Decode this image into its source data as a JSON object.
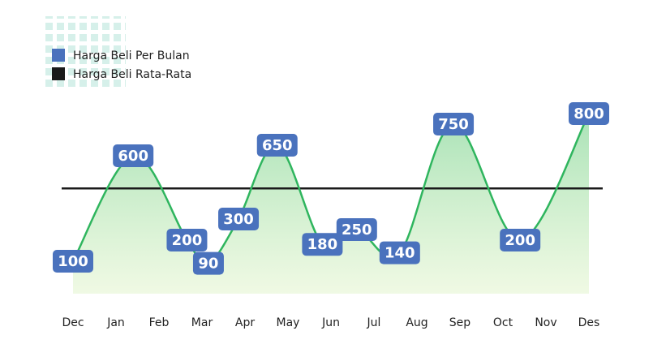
{
  "chart_data": {
    "type": "line",
    "series": [
      {
        "name": "Harga Beli Per Bulan",
        "color": "#4a72bd",
        "line_color": "#2fb55e",
        "x": [
          0,
          1.4,
          2.65,
          3.15,
          3.85,
          4.75,
          5.8,
          6.6,
          7.6,
          8.85,
          10.4,
          12
        ],
        "values": [
          100,
          600,
          200,
          90,
          300,
          650,
          180,
          250,
          140,
          750,
          200,
          800
        ]
      },
      {
        "name": "Harga Beli Rata-Rata",
        "color": "#1a1a1a",
        "values": [
          445
        ]
      }
    ],
    "xlim": [
      0,
      12
    ],
    "xticks": [
      {
        "value": 0,
        "label": "Dec"
      },
      {
        "value": 1,
        "label": "Jan"
      },
      {
        "value": 2,
        "label": "Feb"
      },
      {
        "value": 3,
        "label": "Mar"
      },
      {
        "value": 4,
        "label": "Apr"
      },
      {
        "value": 5,
        "label": "May"
      },
      {
        "value": 6,
        "label": "Jun"
      },
      {
        "value": 7,
        "label": "Jul"
      },
      {
        "value": 8,
        "label": "Aug"
      },
      {
        "value": 9,
        "label": "Sep"
      },
      {
        "value": 10,
        "label": "Oct"
      },
      {
        "value": 11,
        "label": "Nov"
      },
      {
        "value": 12,
        "label": "Des"
      }
    ],
    "ylim": [
      0,
      900
    ]
  }
}
